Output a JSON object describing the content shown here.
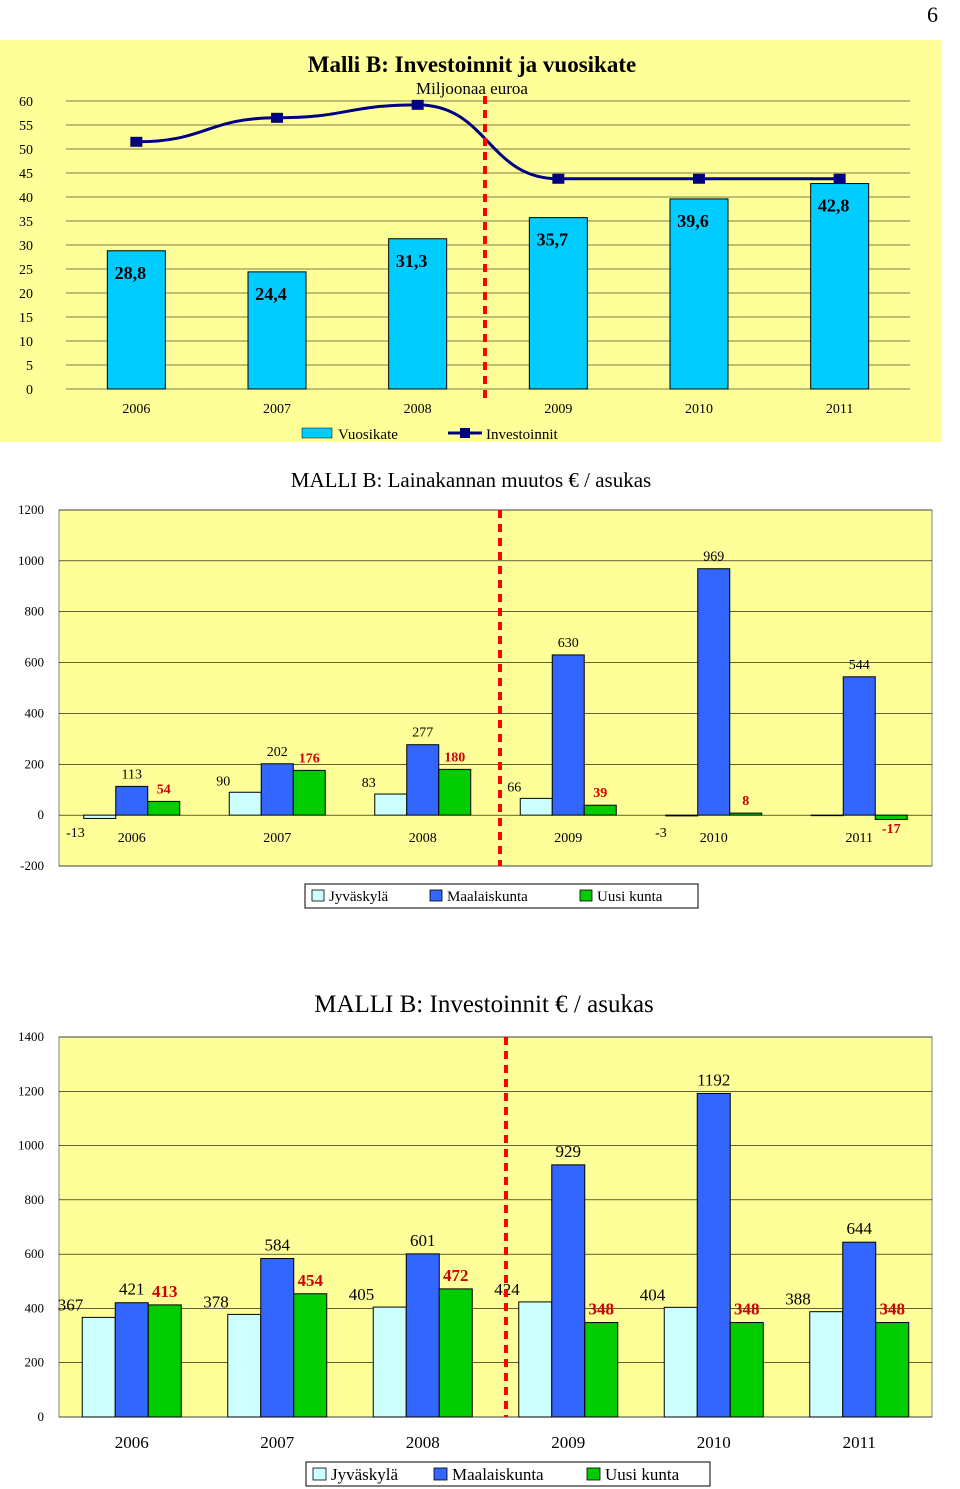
{
  "page": {
    "number": "6"
  },
  "chart_data": [
    {
      "type": "bar",
      "title": "Malli B: Investoinnit ja vuosikate",
      "subtitle": "Miljoonaa euroa",
      "categories": [
        "2006",
        "2007",
        "2008",
        "2009",
        "2010",
        "2011"
      ],
      "series": [
        {
          "name": "Vuosikate",
          "kind": "bar",
          "color": "#00CCFF",
          "values": [
            28.8,
            24.4,
            31.3,
            35.7,
            39.6,
            42.8
          ],
          "labels": [
            "28,8",
            "24,4",
            "31,3",
            "35,7",
            "39,6",
            "42,8"
          ]
        },
        {
          "name": "Investoinnit",
          "kind": "line",
          "color": "#000080",
          "values": [
            51.5,
            56.5,
            59.2,
            43.8,
            43.8,
            43.8
          ]
        }
      ],
      "yticks": [
        "0",
        "5",
        "10",
        "15",
        "20",
        "25",
        "30",
        "35",
        "40",
        "45",
        "50",
        "55",
        "60"
      ],
      "ylim": [
        0,
        60
      ],
      "background": "#FFFF99",
      "divider_color": "#FF0000",
      "legend": "bottom"
    },
    {
      "type": "bar",
      "title": "MALLI B: Lainakannan muutos € / asukas",
      "categories": [
        "2006",
        "2007",
        "2008",
        "2009",
        "2010",
        "2011"
      ],
      "series": [
        {
          "name": "Jyväskylä",
          "color": "#CCFFFF",
          "values": [
            -13,
            90,
            83,
            66,
            -3,
            0
          ],
          "labels": [
            "-13",
            "90",
            "83",
            "66",
            "-3",
            ""
          ]
        },
        {
          "name": "Maalaiskunta",
          "color": "#3366FF",
          "values": [
            113,
            202,
            277,
            630,
            969,
            544
          ],
          "labels": [
            "113",
            "202",
            "277",
            "630",
            "969",
            "544"
          ]
        },
        {
          "name": "Uusi kunta",
          "color": "#00CC00",
          "values": [
            54,
            176,
            180,
            39,
            8,
            -17
          ],
          "labels": [
            "54",
            "176",
            "180",
            "39",
            "8",
            "-17"
          ]
        }
      ],
      "yticks": [
        "-200",
        "0",
        "200",
        "400",
        "600",
        "800",
        "1000",
        "1200"
      ],
      "ylim": [
        -200,
        1200
      ],
      "background": "#FFFF99",
      "divider_color": "#FF0000",
      "label_color_uusi": "#CC0000",
      "legend": "bottom"
    },
    {
      "type": "bar",
      "title": "MALLI B: Investoinnit € / asukas",
      "categories": [
        "2006",
        "2007",
        "2008",
        "2009",
        "2010",
        "2011"
      ],
      "series": [
        {
          "name": "Jyväskylä",
          "color": "#CCFFFF",
          "values": [
            367,
            378,
            405,
            424,
            404,
            388
          ],
          "labels": [
            "367",
            "378",
            "405",
            "424",
            "404",
            "388"
          ]
        },
        {
          "name": "Maalaiskunta",
          "color": "#3366FF",
          "values": [
            421,
            584,
            601,
            929,
            1192,
            644
          ],
          "labels": [
            "421",
            "584",
            "601",
            "929",
            "1192",
            "644"
          ]
        },
        {
          "name": "Uusi kunta",
          "color": "#00CC00",
          "values": [
            413,
            454,
            472,
            348,
            348,
            348
          ],
          "labels": [
            "413",
            "454",
            "472",
            "348",
            "348",
            "348"
          ]
        }
      ],
      "yticks": [
        "0",
        "200",
        "400",
        "600",
        "800",
        "1000",
        "1200",
        "1400"
      ],
      "ylim": [
        0,
        1400
      ],
      "background": "#FFFF99",
      "divider_color": "#FF0000",
      "label_color_uusi": "#CC0000",
      "legend": "bottom"
    }
  ]
}
